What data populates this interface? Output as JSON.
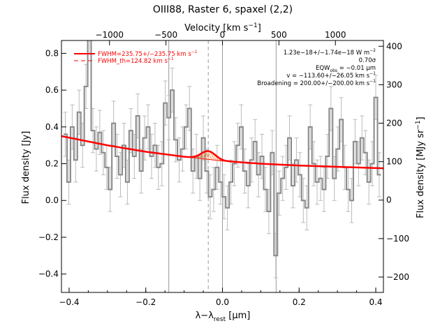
{
  "chart_data": {
    "type": "line",
    "title": "OIII88, Raster 6, spaxel (2,2)",
    "xlabel_main": "λ−λ",
    "xlabel_sub": "rest",
    "xlabel_unit": " [μm]",
    "ylabel_left": "Flux density [Jy]",
    "ylabel_right_main": "Flux density [MJy sr",
    "ylabel_right_sup": "−1",
    "ylabel_right_end": "]",
    "top_axis_label_main": "Velocity [km s",
    "top_axis_label_sup": "−1",
    "top_axis_label_end": "]",
    "xlim": [
      -0.42,
      0.42
    ],
    "ylim_left": [
      -0.5,
      0.87
    ],
    "ylim_right": [
      -240,
      415
    ],
    "x_ticks": [
      -0.4,
      -0.2,
      0.0,
      0.2,
      0.4
    ],
    "x_tick_labels": [
      "−0.4",
      "−0.2",
      "0.0",
      "0.2",
      "0.4"
    ],
    "y_left_ticks": [
      -0.4,
      -0.2,
      0.0,
      0.2,
      0.4,
      0.6,
      0.8
    ],
    "y_left_tick_labels": [
      "−0.4",
      "−0.2",
      "0.0",
      "0.2",
      "0.4",
      "0.6",
      "0.8"
    ],
    "y_right_ticks": [
      -200,
      -100,
      0,
      100,
      200,
      300,
      400
    ],
    "y_right_tick_labels": [
      "−200",
      "−100",
      "0",
      "100",
      "200",
      "300",
      "400"
    ],
    "velocity_ticks": [
      -1000,
      -500,
      0,
      500,
      1000
    ],
    "velocity_tick_labels": [
      "−1000",
      "−500",
      "0",
      "500",
      "1000"
    ],
    "vertical_lines": [
      -0.14,
      0.0,
      0.14
    ],
    "dashed_vertical_line": -0.037,
    "legend": [
      {
        "label_main": "FWHM=235.75+/−235.75 km s",
        "label_sup": "−1",
        "style": "solid"
      },
      {
        "label_main": "FWHM_th=124.82 km s",
        "label_sup": "−1",
        "style": "dashed"
      }
    ],
    "annotations": {
      "flux_main": "1.23e−18+/−1.74e−18 W m",
      "flux_sup": "−2",
      "sigma": "0.70σ",
      "eqw_pre": "EQW",
      "eqw_sub": "obs",
      "eqw_post": " = −0.01 μm",
      "velocity": "v = −113.60+/−26.05 km s",
      "velocity_sup": "−1",
      "broadening": "Broadening = 200.00+/−200.00 km s",
      "broadening_sup": "−1"
    },
    "series": [
      {
        "name": "data",
        "color": "#888888",
        "x": [
          -0.41,
          -0.401,
          -0.392,
          -0.383,
          -0.374,
          -0.365,
          -0.356,
          -0.347,
          -0.338,
          -0.329,
          -0.32,
          -0.311,
          -0.302,
          -0.293,
          -0.284,
          -0.275,
          -0.266,
          -0.257,
          -0.248,
          -0.239,
          -0.23,
          -0.221,
          -0.212,
          -0.203,
          -0.194,
          -0.185,
          -0.176,
          -0.167,
          -0.158,
          -0.149,
          -0.14,
          -0.131,
          -0.122,
          -0.113,
          -0.104,
          -0.095,
          -0.086,
          -0.077,
          -0.068,
          -0.059,
          -0.05,
          -0.041,
          -0.032,
          -0.023,
          -0.014,
          -0.005,
          0.004,
          0.013,
          0.022,
          0.031,
          0.04,
          0.049,
          0.058,
          0.067,
          0.076,
          0.085,
          0.094,
          0.103,
          0.112,
          0.121,
          0.13,
          0.139,
          0.148,
          0.157,
          0.166,
          0.175,
          0.184,
          0.193,
          0.202,
          0.211,
          0.22,
          0.229,
          0.238,
          0.247,
          0.256,
          0.265,
          0.274,
          0.283,
          0.292,
          0.301,
          0.31,
          0.319,
          0.328,
          0.337,
          0.346,
          0.355,
          0.364,
          0.373,
          0.382,
          0.391,
          0.4,
          0.409
        ],
        "y": [
          0.36,
          0.1,
          0.4,
          0.22,
          0.48,
          0.3,
          0.62,
          0.92,
          0.38,
          0.28,
          0.37,
          0.26,
          0.18,
          0.06,
          0.42,
          0.24,
          0.14,
          0.3,
          0.1,
          0.38,
          0.24,
          0.46,
          0.16,
          0.34,
          0.4,
          0.24,
          0.3,
          0.18,
          0.2,
          0.53,
          0.45,
          0.6,
          0.33,
          0.22,
          0.28,
          0.4,
          0.5,
          0.16,
          0.24,
          0.12,
          0.34,
          0.16,
          0.02,
          0.06,
          0.18,
          0.1,
          0.02,
          -0.04,
          0.1,
          0.2,
          0.3,
          0.4,
          0.16,
          0.08,
          0.22,
          0.32,
          0.14,
          0.24,
          0.06,
          -0.06,
          0.26,
          -0.3,
          0.04,
          0.12,
          0.18,
          0.34,
          0.08,
          0.22,
          0.14,
          0.0,
          -0.04,
          0.4,
          0.2,
          0.1,
          0.12,
          0.06,
          0.24,
          0.5,
          0.12,
          0.28,
          0.44,
          0.18,
          0.06,
          0.0,
          0.32,
          0.2,
          0.34,
          0.26,
          0.1,
          0.2,
          0.56,
          0.14
        ],
        "error": 0.12
      },
      {
        "name": "continuum",
        "color": "#ff0000",
        "x": [
          -0.42,
          -0.3,
          -0.2,
          -0.1,
          0.0,
          0.1,
          0.2,
          0.3,
          0.42
        ],
        "y": [
          0.35,
          0.3,
          0.265,
          0.238,
          0.215,
          0.2,
          0.19,
          0.183,
          0.175
        ]
      },
      {
        "name": "gaussian",
        "amplitude": 0.045,
        "center": -0.037,
        "fwhm": 0.0436,
        "thermal_fwhm": 0.0231
      }
    ]
  }
}
